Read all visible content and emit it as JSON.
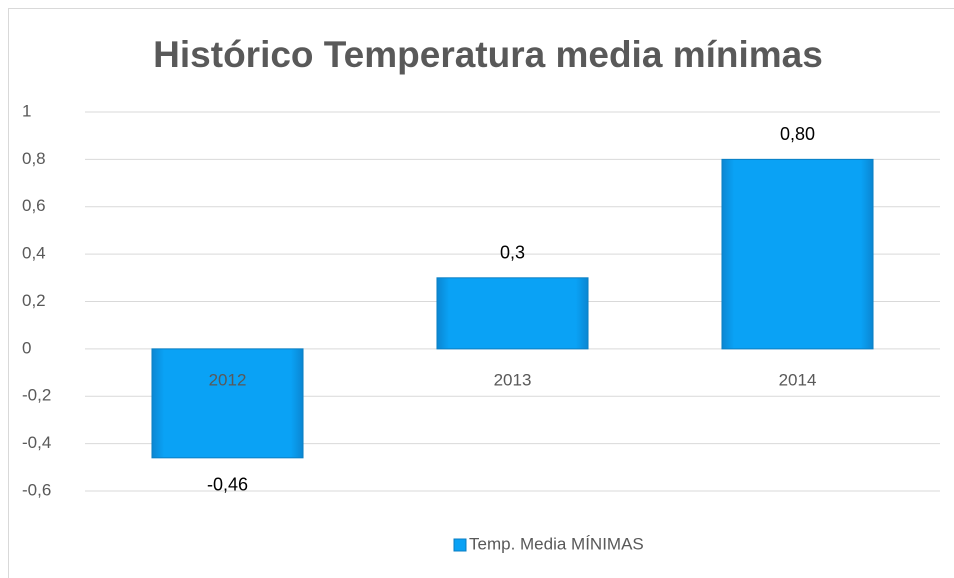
{
  "chart_data": {
    "type": "bar",
    "title": "Histórico Temperatura media mínimas",
    "categories": [
      "2012",
      "2013",
      "2014"
    ],
    "series": [
      {
        "name": "Temp. Media MÍNIMAS",
        "color": "#0aa2f5",
        "values": [
          -0.46,
          0.3,
          0.8
        ],
        "value_labels": [
          "-0,46",
          "0,3",
          "0,80"
        ]
      }
    ],
    "ylim": [
      -0.6,
      1
    ],
    "yticks": [
      {
        "value": -0.6,
        "label": "-0,6"
      },
      {
        "value": -0.4,
        "label": "-0,4"
      },
      {
        "value": -0.2,
        "label": "-0,2"
      },
      0,
      {
        "value": 0.2,
        "label": "0,2"
      },
      {
        "value": 0.4,
        "label": "0,4"
      },
      {
        "value": 0.6,
        "label": "0,6"
      },
      {
        "value": 0.8,
        "label": "0,8"
      },
      1
    ],
    "grid": true,
    "legend": "bottom"
  }
}
